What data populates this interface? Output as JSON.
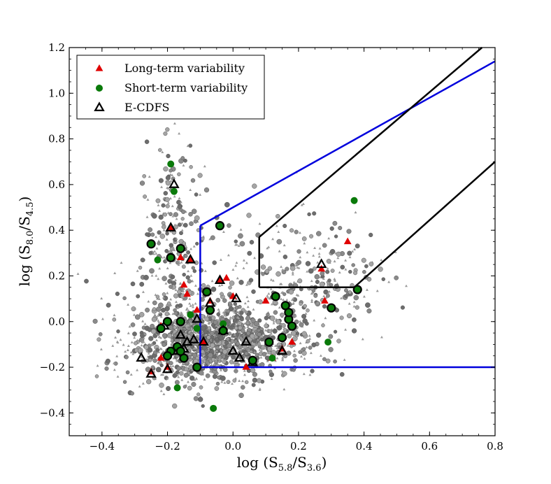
{
  "chart_data": {
    "type": "scatter",
    "xlabel": "log (S5.8/S3.6)",
    "ylabel": "log (S8.0/S4.5)",
    "xlabel_parts": {
      "pre": "log (S",
      "sub1": "5.8",
      "mid": "/S",
      "sub2": "3.6",
      "post": ")"
    },
    "ylabel_parts": {
      "pre": "log (S",
      "sub1": "8.0",
      "mid": "/S",
      "sub2": "4.5",
      "post": ")"
    },
    "xlim": [
      -0.5,
      0.8
    ],
    "ylim": [
      -0.5,
      1.2
    ],
    "xticks": [
      -0.4,
      -0.2,
      0.0,
      0.2,
      0.4,
      0.6,
      0.8
    ],
    "xtick_labels": [
      "−0.4",
      "−0.2",
      "0.0",
      "0.2",
      "0.4",
      "0.6",
      "0.8"
    ],
    "yticks": [
      -0.4,
      -0.2,
      0.0,
      0.2,
      0.4,
      0.6,
      0.8,
      1.0,
      1.2
    ],
    "ytick_labels": [
      "−0.4",
      "−0.2",
      "0.0",
      "0.2",
      "0.4",
      "0.6",
      "0.8",
      "1.0",
      "1.2"
    ],
    "legend": {
      "position": "top-left",
      "entries": [
        {
          "label": "Long-term variability",
          "marker": "triangle",
          "color": "#e00000"
        },
        {
          "label": "Short-term variability",
          "marker": "circle",
          "color": "#0a7a0a"
        },
        {
          "label": "E-CDFS",
          "marker": "open-triangle",
          "color": "#000000"
        }
      ]
    },
    "selection_lines": [
      {
        "name": "blue-wedge",
        "color": "#0000dd",
        "points": [
          [
            -0.1,
            -0.2
          ],
          [
            -0.1,
            0.42
          ],
          [
            -0.1,
            0.42
          ],
          [
            0.8,
            1.14
          ]
        ],
        "segments": [
          [
            [
              0.8,
              -0.2
            ],
            [
              -0.1,
              -0.2
            ]
          ],
          [
            [
              -0.1,
              -0.2
            ],
            [
              -0.1,
              0.42
            ]
          ],
          [
            [
              -0.1,
              0.42
            ],
            [
              0.8,
              1.14
            ]
          ]
        ]
      },
      {
        "name": "black-wedge",
        "color": "#000000",
        "segments": [
          [
            [
              0.08,
              0.37
            ],
            [
              0.08,
              0.15
            ]
          ],
          [
            [
              0.08,
              0.15
            ],
            [
              0.37,
              0.15
            ]
          ],
          [
            [
              0.37,
              0.15
            ],
            [
              0.8,
              0.7
            ]
          ],
          [
            [
              0.08,
              0.37
            ],
            [
              0.76,
              1.2
            ]
          ]
        ]
      }
    ],
    "background_cloud": {
      "description_count": 1900,
      "colors": [
        "#8a8a8a",
        "#a5a5a5",
        "#6d6d6d"
      ],
      "clusters": [
        {
          "cx": -0.12,
          "cy": -0.1,
          "sx": 0.1,
          "sy": 0.09,
          "n": 900
        },
        {
          "cx": 0.05,
          "cy": -0.08,
          "sx": 0.1,
          "sy": 0.07,
          "n": 450
        },
        {
          "cx": -0.18,
          "cy": 0.4,
          "sx": 0.04,
          "sy": 0.2,
          "n": 220
        },
        {
          "cx": 0.25,
          "cy": 0.2,
          "sx": 0.1,
          "sy": 0.12,
          "n": 230
        },
        {
          "cx": -0.05,
          "cy": 0.15,
          "sx": 0.14,
          "sy": 0.16,
          "n": 200
        }
      ]
    },
    "series": [
      {
        "name": "Long-term variability",
        "marker": "triangle",
        "color": "#e00000",
        "points": [
          [
            -0.19,
            0.41
          ],
          [
            -0.15,
            0.16
          ],
          [
            -0.14,
            0.12
          ],
          [
            -0.16,
            0.28
          ],
          [
            -0.22,
            -0.02
          ],
          [
            -0.13,
            0.27
          ],
          [
            -0.11,
            0.05
          ],
          [
            -0.02,
            0.19
          ],
          [
            0.0,
            0.11
          ],
          [
            -0.07,
            0.09
          ],
          [
            0.1,
            0.09
          ],
          [
            0.12,
            -0.16
          ],
          [
            0.18,
            -0.09
          ],
          [
            0.28,
            0.09
          ],
          [
            0.35,
            0.35
          ],
          [
            0.27,
            0.23
          ],
          [
            -0.25,
            -0.22
          ],
          [
            -0.2,
            -0.2
          ],
          [
            -0.22,
            -0.16
          ],
          [
            0.04,
            -0.2
          ],
          [
            -0.09,
            -0.09
          ],
          [
            -0.04,
            0.18
          ],
          [
            0.15,
            -0.12
          ]
        ]
      },
      {
        "name": "Short-term variability",
        "marker": "circle",
        "color": "#0a7a0a",
        "points": [
          [
            -0.19,
            0.69
          ],
          [
            -0.23,
            0.27
          ],
          [
            -0.13,
            0.03
          ],
          [
            -0.17,
            -0.29
          ],
          [
            -0.06,
            -0.38
          ],
          [
            0.37,
            0.53
          ],
          [
            0.29,
            -0.09
          ],
          [
            0.12,
            -0.16
          ],
          [
            -0.03,
            -0.01
          ],
          [
            -0.18,
            0.57
          ],
          [
            -0.11,
            -0.03
          ]
        ]
      },
      {
        "name": "E-CDFS",
        "marker": "open-triangle",
        "color": "#000000",
        "points": [
          [
            -0.18,
            0.6
          ],
          [
            -0.19,
            0.41
          ],
          [
            -0.13,
            0.27
          ],
          [
            -0.04,
            0.18
          ],
          [
            0.01,
            0.1
          ],
          [
            -0.07,
            0.08
          ],
          [
            -0.11,
            0.01
          ],
          [
            -0.21,
            -0.02
          ],
          [
            -0.16,
            -0.06
          ],
          [
            -0.14,
            -0.09
          ],
          [
            -0.12,
            -0.08
          ],
          [
            -0.09,
            -0.09
          ],
          [
            -0.15,
            -0.12
          ],
          [
            -0.18,
            -0.13
          ],
          [
            -0.28,
            -0.16
          ],
          [
            -0.25,
            -0.23
          ],
          [
            -0.2,
            -0.21
          ],
          [
            0.0,
            -0.13
          ],
          [
            0.04,
            -0.09
          ],
          [
            0.02,
            -0.16
          ],
          [
            0.06,
            -0.18
          ],
          [
            0.15,
            -0.13
          ],
          [
            0.27,
            0.25
          ],
          [
            -0.03,
            -0.04
          ]
        ]
      },
      {
        "name": "E-CDFS circles",
        "marker": "open-circle",
        "color": "#000000",
        "fill": "#0a7a0a",
        "points": [
          [
            -0.04,
            0.42
          ],
          [
            -0.25,
            0.34
          ],
          [
            -0.16,
            0.32
          ],
          [
            -0.19,
            0.28
          ],
          [
            -0.08,
            0.13
          ],
          [
            -0.07,
            0.05
          ],
          [
            -0.2,
            0.0
          ],
          [
            -0.16,
            0.0
          ],
          [
            -0.22,
            -0.03
          ],
          [
            -0.17,
            -0.11
          ],
          [
            -0.19,
            -0.13
          ],
          [
            -0.2,
            -0.15
          ],
          [
            -0.15,
            -0.16
          ],
          [
            -0.11,
            -0.2
          ],
          [
            -0.16,
            -0.13
          ],
          [
            0.13,
            0.11
          ],
          [
            0.16,
            0.07
          ],
          [
            0.17,
            0.01
          ],
          [
            0.18,
            -0.02
          ],
          [
            0.11,
            -0.09
          ],
          [
            0.15,
            -0.07
          ],
          [
            0.17,
            0.04
          ],
          [
            0.3,
            0.06
          ],
          [
            0.38,
            0.14
          ],
          [
            0.06,
            -0.17
          ],
          [
            -0.03,
            -0.04
          ]
        ]
      }
    ]
  }
}
